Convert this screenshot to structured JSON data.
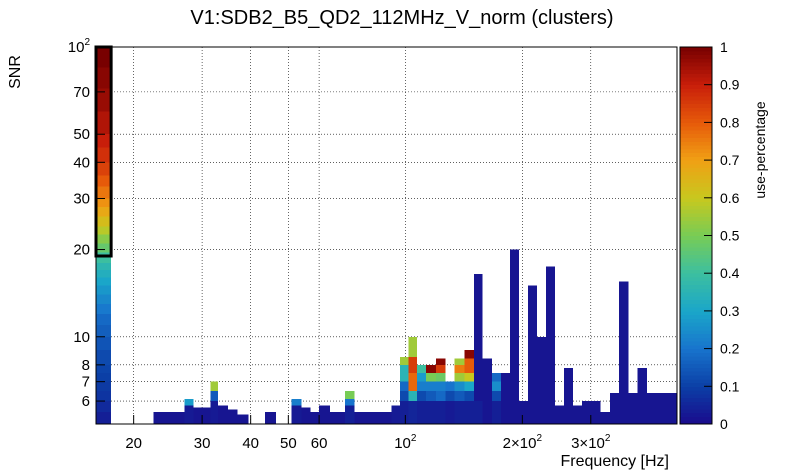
{
  "chart_data": {
    "type": "heatmap",
    "title": "V1:SDB2_B5_QD2_112MHz_V_norm (clusters)",
    "xlabel": "Frequency [Hz]",
    "ylabel": "SNR",
    "zlabel": "use-percentage",
    "x_scale": "log",
    "y_scale": "log",
    "xlim": [
      16,
      500
    ],
    "ylim": [
      5,
      100
    ],
    "zlim": [
      0,
      1
    ],
    "grid": true,
    "x_ticks": [
      {
        "value": 20,
        "label": "20"
      },
      {
        "value": 30,
        "label": "30"
      },
      {
        "value": 40,
        "label": "40"
      },
      {
        "value": 50,
        "label": "50"
      },
      {
        "value": 60,
        "label": "60"
      },
      {
        "value": 100,
        "label": "10",
        "sup": "2"
      },
      {
        "value": 200,
        "label": "2×10",
        "sup": "2"
      },
      {
        "value": 300,
        "label": "3×10",
        "sup": "2"
      }
    ],
    "y_ticks": [
      {
        "value": 6,
        "label": "6"
      },
      {
        "value": 7,
        "label": "7"
      },
      {
        "value": 8,
        "label": "8"
      },
      {
        "value": 10,
        "label": "10"
      },
      {
        "value": 20,
        "label": "20"
      },
      {
        "value": 30,
        "label": "30"
      },
      {
        "value": 40,
        "label": "40"
      },
      {
        "value": 50,
        "label": "50"
      },
      {
        "value": 70,
        "label": "70"
      },
      {
        "value": 100,
        "label": "10",
        "sup": "2"
      }
    ],
    "z_ticks": [
      "0",
      "0.1",
      "0.2",
      "0.3",
      "0.4",
      "0.5",
      "0.6",
      "0.7",
      "0.8",
      "0.9",
      "1"
    ],
    "colorscale": [
      "#1a0a8c",
      "#0b3fa6",
      "#1874cd",
      "#1aa6c9",
      "#3cbfa0",
      "#78cc55",
      "#c8c81e",
      "#f0a014",
      "#e65a0a",
      "#c81e0a",
      "#780000"
    ],
    "columns": [
      {
        "x0": 16.0,
        "x1": 17.5,
        "cells": [
          {
            "y0": 5.0,
            "y1": 5.5,
            "z": 0.04
          },
          {
            "y0": 5.5,
            "y1": 6.0,
            "z": 0.06
          },
          {
            "y0": 6.0,
            "y1": 6.5,
            "z": 0.08
          },
          {
            "y0": 6.5,
            "y1": 7.0,
            "z": 0.09
          },
          {
            "y0": 7.0,
            "y1": 7.5,
            "z": 0.1
          },
          {
            "y0": 7.5,
            "y1": 8.0,
            "z": 0.11
          },
          {
            "y0": 8.0,
            "y1": 9.0,
            "z": 0.12
          },
          {
            "y0": 9.0,
            "y1": 10.0,
            "z": 0.14
          },
          {
            "y0": 10.0,
            "y1": 11.0,
            "z": 0.16
          },
          {
            "y0": 11.0,
            "y1": 12.0,
            "z": 0.18
          },
          {
            "y0": 12.0,
            "y1": 13.0,
            "z": 0.21
          },
          {
            "y0": 13.0,
            "y1": 14.0,
            "z": 0.24
          },
          {
            "y0": 14.0,
            "y1": 15.0,
            "z": 0.27
          },
          {
            "y0": 15.0,
            "y1": 16.0,
            "z": 0.3
          },
          {
            "y0": 16.0,
            "y1": 17.0,
            "z": 0.33
          },
          {
            "y0": 17.0,
            "y1": 18.0,
            "z": 0.36
          },
          {
            "y0": 18.0,
            "y1": 19.5,
            "z": 0.4
          },
          {
            "y0": 19.5,
            "y1": 21.0,
            "z": 0.47
          },
          {
            "y0": 21.0,
            "y1": 22.5,
            "z": 0.52
          },
          {
            "y0": 22.5,
            "y1": 24.0,
            "z": 0.58
          },
          {
            "y0": 24.0,
            "y1": 26.0,
            "z": 0.63
          },
          {
            "y0": 26.0,
            "y1": 28.0,
            "z": 0.68
          },
          {
            "y0": 28.0,
            "y1": 30.0,
            "z": 0.72
          },
          {
            "y0": 30.0,
            "y1": 33.0,
            "z": 0.76
          },
          {
            "y0": 33.0,
            "y1": 36.0,
            "z": 0.8
          },
          {
            "y0": 36.0,
            "y1": 40.0,
            "z": 0.84
          },
          {
            "y0": 40.0,
            "y1": 45.0,
            "z": 0.87
          },
          {
            "y0": 45.0,
            "y1": 50.0,
            "z": 0.9
          },
          {
            "y0": 50.0,
            "y1": 60.0,
            "z": 0.93
          },
          {
            "y0": 60.0,
            "y1": 72.0,
            "z": 0.96
          },
          {
            "y0": 72.0,
            "y1": 85.0,
            "z": 0.98
          },
          {
            "y0": 85.0,
            "y1": 100.0,
            "z": 1.0
          }
        ]
      },
      {
        "x0": 22.5,
        "x1": 27.0,
        "cells": [
          {
            "y0": 5.0,
            "y1": 5.5,
            "z": 0.02
          }
        ]
      },
      {
        "x0": 27.0,
        "x1": 28.5,
        "cells": [
          {
            "y0": 5.0,
            "y1": 5.8,
            "z": 0.03
          },
          {
            "y0": 5.8,
            "y1": 6.1,
            "z": 0.28
          }
        ]
      },
      {
        "x0": 28.5,
        "x1": 31.5,
        "cells": [
          {
            "y0": 5.0,
            "y1": 5.7,
            "z": 0.02
          }
        ]
      },
      {
        "x0": 31.5,
        "x1": 33.0,
        "cells": [
          {
            "y0": 5.0,
            "y1": 6.0,
            "z": 0.03
          },
          {
            "y0": 6.0,
            "y1": 6.5,
            "z": 0.15
          },
          {
            "y0": 6.5,
            "y1": 7.0,
            "z": 0.55
          }
        ]
      },
      {
        "x0": 33.0,
        "x1": 35.0,
        "cells": [
          {
            "y0": 5.0,
            "y1": 5.8,
            "z": 0.02
          }
        ]
      },
      {
        "x0": 35.0,
        "x1": 37.0,
        "cells": [
          {
            "y0": 5.0,
            "y1": 5.6,
            "z": 0.02
          }
        ]
      },
      {
        "x0": 37.0,
        "x1": 39.5,
        "cells": [
          {
            "y0": 5.0,
            "y1": 5.4,
            "z": 0.02
          }
        ]
      },
      {
        "x0": 43.5,
        "x1": 46.5,
        "cells": [
          {
            "y0": 5.0,
            "y1": 5.5,
            "z": 0.02
          }
        ]
      },
      {
        "x0": 51.0,
        "x1": 54.0,
        "cells": [
          {
            "y0": 5.0,
            "y1": 5.8,
            "z": 0.03
          },
          {
            "y0": 5.8,
            "y1": 6.1,
            "z": 0.22
          }
        ]
      },
      {
        "x0": 54.0,
        "x1": 57.0,
        "cells": [
          {
            "y0": 5.0,
            "y1": 5.7,
            "z": 0.02
          }
        ]
      },
      {
        "x0": 57.0,
        "x1": 60.0,
        "cells": [
          {
            "y0": 5.0,
            "y1": 5.5,
            "z": 0.02
          }
        ]
      },
      {
        "x0": 60.0,
        "x1": 64.0,
        "cells": [
          {
            "y0": 5.0,
            "y1": 5.8,
            "z": 0.02
          }
        ]
      },
      {
        "x0": 64.0,
        "x1": 70.0,
        "cells": [
          {
            "y0": 5.0,
            "y1": 5.5,
            "z": 0.02
          }
        ]
      },
      {
        "x0": 70.0,
        "x1": 74.0,
        "cells": [
          {
            "y0": 5.0,
            "y1": 5.8,
            "z": 0.04
          },
          {
            "y0": 5.8,
            "y1": 6.1,
            "z": 0.2
          },
          {
            "y0": 6.1,
            "y1": 6.5,
            "z": 0.5
          }
        ]
      },
      {
        "x0": 74.0,
        "x1": 92.0,
        "cells": [
          {
            "y0": 5.0,
            "y1": 5.5,
            "z": 0.02
          }
        ]
      },
      {
        "x0": 92.0,
        "x1": 97.0,
        "cells": [
          {
            "y0": 5.0,
            "y1": 5.8,
            "z": 0.03
          }
        ]
      },
      {
        "x0": 97.0,
        "x1": 102.0,
        "cells": [
          {
            "y0": 5.0,
            "y1": 6.0,
            "z": 0.04
          },
          {
            "y0": 6.0,
            "y1": 6.5,
            "z": 0.12
          },
          {
            "y0": 6.5,
            "y1": 7.0,
            "z": 0.18
          },
          {
            "y0": 7.0,
            "y1": 8.0,
            "z": 0.35
          },
          {
            "y0": 8.0,
            "y1": 8.5,
            "z": 0.55
          }
        ]
      },
      {
        "x0": 102.0,
        "x1": 107.0,
        "cells": [
          {
            "y0": 5.0,
            "y1": 6.0,
            "z": 0.05
          },
          {
            "y0": 6.0,
            "y1": 6.5,
            "z": 0.35
          },
          {
            "y0": 6.5,
            "y1": 7.5,
            "z": 0.78
          },
          {
            "y0": 7.5,
            "y1": 8.5,
            "z": 0.85
          },
          {
            "y0": 8.5,
            "y1": 10.0,
            "z": 0.55
          }
        ]
      },
      {
        "x0": 107.0,
        "x1": 113.0,
        "cells": [
          {
            "y0": 5.0,
            "y1": 6.0,
            "z": 0.04
          },
          {
            "y0": 6.0,
            "y1": 6.5,
            "z": 0.12
          },
          {
            "y0": 6.5,
            "y1": 7.0,
            "z": 0.22
          },
          {
            "y0": 7.0,
            "y1": 7.5,
            "z": 0.28
          },
          {
            "y0": 7.5,
            "y1": 8.0,
            "z": 0.4
          }
        ]
      },
      {
        "x0": 113.0,
        "x1": 120.0,
        "cells": [
          {
            "y0": 5.0,
            "y1": 6.0,
            "z": 0.04
          },
          {
            "y0": 6.0,
            "y1": 6.5,
            "z": 0.15
          },
          {
            "y0": 6.5,
            "y1": 7.0,
            "z": 0.22
          },
          {
            "y0": 7.0,
            "y1": 7.5,
            "z": 0.5
          },
          {
            "y0": 7.5,
            "y1": 8.0,
            "z": 0.98
          }
        ]
      },
      {
        "x0": 120.0,
        "x1": 127.0,
        "cells": [
          {
            "y0": 5.0,
            "y1": 6.0,
            "z": 0.04
          },
          {
            "y0": 6.0,
            "y1": 6.5,
            "z": 0.18
          },
          {
            "y0": 6.5,
            "y1": 7.0,
            "z": 0.22
          },
          {
            "y0": 7.0,
            "y1": 7.5,
            "z": 0.48
          },
          {
            "y0": 7.5,
            "y1": 8.0,
            "z": 0.85
          },
          {
            "y0": 8.0,
            "y1": 8.4,
            "z": 0.98
          }
        ]
      },
      {
        "x0": 127.0,
        "x1": 134.0,
        "cells": [
          {
            "y0": 5.0,
            "y1": 6.0,
            "z": 0.03
          },
          {
            "y0": 6.0,
            "y1": 6.5,
            "z": 0.12
          },
          {
            "y0": 6.5,
            "y1": 7.0,
            "z": 0.2
          }
        ]
      },
      {
        "x0": 134.0,
        "x1": 142.0,
        "cells": [
          {
            "y0": 5.0,
            "y1": 6.0,
            "z": 0.04
          },
          {
            "y0": 6.0,
            "y1": 6.5,
            "z": 0.15
          },
          {
            "y0": 6.5,
            "y1": 7.0,
            "z": 0.25
          },
          {
            "y0": 7.0,
            "y1": 7.5,
            "z": 0.55
          },
          {
            "y0": 7.5,
            "y1": 8.0,
            "z": 0.75
          },
          {
            "y0": 8.0,
            "y1": 8.4,
            "z": 0.55
          }
        ]
      },
      {
        "x0": 142.0,
        "x1": 150.0,
        "cells": [
          {
            "y0": 5.0,
            "y1": 6.0,
            "z": 0.04
          },
          {
            "y0": 6.0,
            "y1": 6.5,
            "z": 0.12
          },
          {
            "y0": 6.5,
            "y1": 7.0,
            "z": 0.3
          },
          {
            "y0": 7.0,
            "y1": 7.5,
            "z": 0.6
          },
          {
            "y0": 7.5,
            "y1": 8.4,
            "z": 0.8
          },
          {
            "y0": 8.4,
            "y1": 9.0,
            "z": 0.98
          }
        ]
      },
      {
        "x0": 150.0,
        "x1": 158.0,
        "cells": [
          {
            "y0": 5.0,
            "y1": 6.0,
            "z": 0.04
          },
          {
            "y0": 6.0,
            "y1": 16.5,
            "z": 0.02
          }
        ]
      },
      {
        "x0": 158.0,
        "x1": 167.0,
        "cells": [
          {
            "y0": 5.0,
            "y1": 8.4,
            "z": 0.02
          }
        ]
      },
      {
        "x0": 167.0,
        "x1": 176.0,
        "cells": [
          {
            "y0": 5.0,
            "y1": 6.0,
            "z": 0.04
          },
          {
            "y0": 6.0,
            "y1": 6.5,
            "z": 0.12
          },
          {
            "y0": 6.5,
            "y1": 7.0,
            "z": 0.25
          },
          {
            "y0": 7.0,
            "y1": 7.5,
            "z": 0.18
          }
        ]
      },
      {
        "x0": 176.0,
        "x1": 186.0,
        "cells": [
          {
            "y0": 5.0,
            "y1": 7.5,
            "z": 0.02
          }
        ]
      },
      {
        "x0": 186.0,
        "x1": 196.0,
        "cells": [
          {
            "y0": 5.0,
            "y1": 20.0,
            "z": 0.02
          }
        ]
      },
      {
        "x0": 196.0,
        "x1": 207.0,
        "cells": [
          {
            "y0": 5.0,
            "y1": 6.0,
            "z": 0.02
          }
        ]
      },
      {
        "x0": 207.0,
        "x1": 218.0,
        "cells": [
          {
            "y0": 5.0,
            "y1": 15.0,
            "z": 0.02
          }
        ]
      },
      {
        "x0": 218.0,
        "x1": 230.0,
        "cells": [
          {
            "y0": 5.0,
            "y1": 10.0,
            "z": 0.02
          }
        ]
      },
      {
        "x0": 230.0,
        "x1": 243.0,
        "cells": [
          {
            "y0": 5.0,
            "y1": 17.5,
            "z": 0.02
          }
        ]
      },
      {
        "x0": 243.0,
        "x1": 256.0,
        "cells": [
          {
            "y0": 5.0,
            "y1": 5.8,
            "z": 0.02
          }
        ]
      },
      {
        "x0": 256.0,
        "x1": 270.0,
        "cells": [
          {
            "y0": 5.0,
            "y1": 7.8,
            "z": 0.02
          }
        ]
      },
      {
        "x0": 270.0,
        "x1": 285.0,
        "cells": [
          {
            "y0": 5.0,
            "y1": 5.8,
            "z": 0.02
          }
        ]
      },
      {
        "x0": 285.0,
        "x1": 300.0,
        "cells": [
          {
            "y0": 5.0,
            "y1": 6.0,
            "z": 0.02
          }
        ]
      },
      {
        "x0": 300.0,
        "x1": 318.0,
        "cells": [
          {
            "y0": 5.0,
            "y1": 6.0,
            "z": 0.02
          }
        ]
      },
      {
        "x0": 318.0,
        "x1": 336.0,
        "cells": [
          {
            "y0": 5.0,
            "y1": 5.5,
            "z": 0.02
          }
        ]
      },
      {
        "x0": 336.0,
        "x1": 355.0,
        "cells": [
          {
            "y0": 5.0,
            "y1": 6.4,
            "z": 0.02
          }
        ]
      },
      {
        "x0": 355.0,
        "x1": 375.0,
        "cells": [
          {
            "y0": 5.0,
            "y1": 15.5,
            "z": 0.02
          }
        ]
      },
      {
        "x0": 375.0,
        "x1": 396.0,
        "cells": [
          {
            "y0": 5.0,
            "y1": 6.4,
            "z": 0.02
          }
        ]
      },
      {
        "x0": 396.0,
        "x1": 418.0,
        "cells": [
          {
            "y0": 5.0,
            "y1": 7.8,
            "z": 0.02
          }
        ]
      },
      {
        "x0": 418.0,
        "x1": 500.0,
        "cells": [
          {
            "y0": 5.0,
            "y1": 6.4,
            "z": 0.02
          }
        ]
      }
    ],
    "highlight_box": {
      "x0": 16.0,
      "x1": 17.5,
      "y0": 19.0,
      "y1": 100.0
    }
  }
}
